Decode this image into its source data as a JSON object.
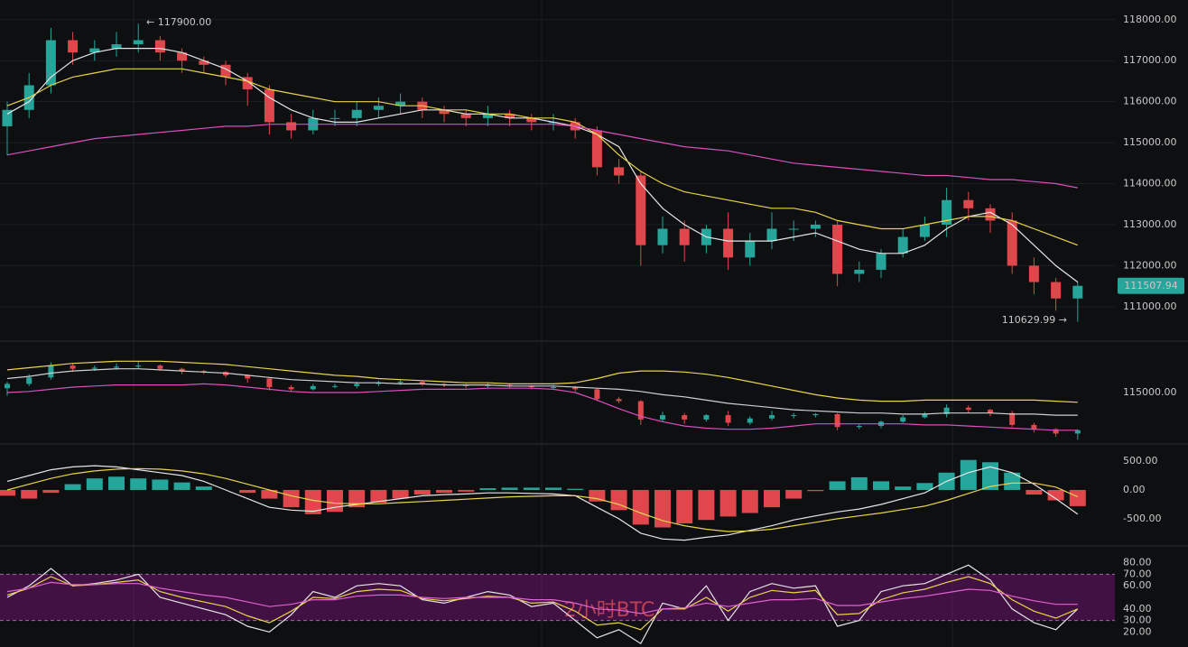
{
  "chart_data": {
    "type": "candlestick",
    "up_color": "#26a69a",
    "down_color": "#e0474c",
    "open": [
      115400,
      115800,
      116400,
      117500,
      117200,
      117300,
      117400,
      117500,
      117200,
      117000,
      116900,
      116600,
      116300,
      115500,
      115300,
      115600,
      115600,
      115800,
      115900,
      116000,
      115800,
      115700,
      115600,
      115700,
      115600,
      115500,
      115500,
      115300,
      114400,
      114200,
      112500,
      112900,
      112500,
      112900,
      112200,
      112600,
      112900,
      112900,
      113000,
      111800,
      111900,
      112300,
      112700,
      113000,
      113600,
      113400,
      113100,
      112000,
      111600,
      111200
    ],
    "high": [
      116000,
      116700,
      117800,
      117700,
      117500,
      117700,
      117900,
      117600,
      117300,
      117100,
      117000,
      116700,
      116400,
      115700,
      115800,
      115800,
      116000,
      116100,
      116200,
      116100,
      115900,
      115800,
      115900,
      115800,
      115700,
      115700,
      115600,
      115400,
      114600,
      114300,
      113200,
      113100,
      113000,
      113300,
      112800,
      113300,
      113100,
      113100,
      113100,
      112100,
      112400,
      112900,
      113200,
      113900,
      113800,
      113500,
      113300,
      112200,
      111700,
      111600
    ],
    "low": [
      114700,
      115600,
      116200,
      116900,
      117000,
      117100,
      117200,
      117000,
      116700,
      116700,
      116400,
      115900,
      115200,
      115100,
      115200,
      115400,
      115400,
      115600,
      115700,
      115600,
      115500,
      115400,
      115400,
      115400,
      115300,
      115300,
      115100,
      114200,
      114000,
      112000,
      112300,
      112100,
      112300,
      111900,
      112000,
      112400,
      112600,
      112700,
      111500,
      111600,
      111700,
      112200,
      112600,
      112700,
      113100,
      112800,
      111800,
      111300,
      110900,
      110630
    ],
    "close": [
      115800,
      116400,
      117500,
      117200,
      117300,
      117400,
      117500,
      117200,
      117000,
      116900,
      116600,
      116300,
      115500,
      115300,
      115600,
      115600,
      115800,
      115900,
      116000,
      115800,
      115700,
      115600,
      115700,
      115600,
      115500,
      115500,
      115300,
      114400,
      114200,
      112500,
      112900,
      112500,
      112900,
      112200,
      112600,
      112900,
      112900,
      113000,
      111800,
      111900,
      112300,
      112700,
      113000,
      113600,
      113400,
      113100,
      112000,
      111600,
      111200,
      111507.94
    ],
    "ma": [
      {
        "color": "#e6e6e6",
        "values": [
          115700,
          116000,
          116600,
          117000,
          117200,
          117300,
          117300,
          117300,
          117200,
          117000,
          116800,
          116500,
          116100,
          115800,
          115600,
          115500,
          115500,
          115600,
          115700,
          115800,
          115800,
          115700,
          115700,
          115600,
          115600,
          115500,
          115400,
          115200,
          114900,
          114000,
          113400,
          113000,
          112700,
          112600,
          112600,
          112600,
          112700,
          112800,
          112600,
          112400,
          112300,
          112300,
          112500,
          112900,
          113200,
          113300,
          113000,
          112500,
          112000,
          111600
        ]
      },
      {
        "color": "#e8d44d",
        "values": [
          115900,
          116100,
          116400,
          116600,
          116700,
          116800,
          116800,
          116800,
          116800,
          116700,
          116600,
          116500,
          116300,
          116200,
          116100,
          116000,
          116000,
          116000,
          115900,
          115900,
          115800,
          115800,
          115700,
          115700,
          115600,
          115600,
          115500,
          115200,
          114700,
          114300,
          114000,
          113800,
          113700,
          113600,
          113500,
          113400,
          113400,
          113300,
          113100,
          113000,
          112900,
          112900,
          113000,
          113100,
          113200,
          113200,
          113100,
          112900,
          112700,
          112500
        ]
      },
      {
        "color": "#d94fc0",
        "values": [
          114700,
          114800,
          114900,
          115000,
          115100,
          115150,
          115200,
          115250,
          115300,
          115350,
          115400,
          115400,
          115450,
          115450,
          115450,
          115450,
          115450,
          115450,
          115450,
          115450,
          115450,
          115450,
          115450,
          115450,
          115450,
          115450,
          115400,
          115300,
          115200,
          115100,
          115000,
          114900,
          114850,
          114800,
          114700,
          114600,
          114500,
          114450,
          114400,
          114350,
          114300,
          114250,
          114200,
          114200,
          114150,
          114100,
          114100,
          114050,
          114000,
          113900
        ]
      }
    ],
    "ylim": [
      110160,
      118480
    ],
    "yticks": [
      {
        "value": 118000,
        "label": "118000.00"
      },
      {
        "value": 117000,
        "label": "117000.00"
      },
      {
        "value": 116000,
        "label": "116000.00"
      },
      {
        "value": 115000,
        "label": "115000.00"
      },
      {
        "value": 114000,
        "label": "114000.00"
      },
      {
        "value": 113000,
        "label": "113000.00"
      },
      {
        "value": 112000,
        "label": "112000.00"
      },
      {
        "value": 111000,
        "label": "111000.00"
      }
    ],
    "last_price": 111507.94,
    "annotations": [
      {
        "text": "← 117900.00"
      },
      {
        "text": "110629.99 →"
      }
    ],
    "watermark": "2小时BTC",
    "bands": {
      "ylim": [
        110400,
        119600
      ],
      "yticks": [
        {
          "value": 115000,
          "label": "115000.00"
        }
      ],
      "series": [
        {
          "color": "#e8d44d",
          "values": [
            117100,
            117300,
            117500,
            117700,
            117800,
            117900,
            117900,
            117900,
            117800,
            117700,
            117600,
            117400,
            117200,
            117000,
            116800,
            116600,
            116500,
            116300,
            116200,
            116100,
            116000,
            115900,
            115900,
            115800,
            115800,
            115800,
            115900,
            116300,
            116800,
            117000,
            117000,
            116900,
            116700,
            116400,
            116000,
            115600,
            115200,
            114800,
            114500,
            114300,
            114200,
            114200,
            114300,
            114300,
            114300,
            114300,
            114300,
            114300,
            114200,
            114100
          ]
        },
        {
          "color": "#cfcfcf",
          "values": [
            116300,
            116500,
            116800,
            117000,
            117100,
            117200,
            117200,
            117100,
            117000,
            116900,
            116800,
            116600,
            116400,
            116200,
            116100,
            116000,
            115900,
            115900,
            115800,
            115800,
            115700,
            115700,
            115700,
            115600,
            115600,
            115600,
            115500,
            115400,
            115300,
            115100,
            114800,
            114600,
            114300,
            114000,
            113800,
            113600,
            113400,
            113300,
            113200,
            113100,
            113100,
            113000,
            113000,
            113100,
            113100,
            113100,
            113000,
            113000,
            112900,
            112900
          ]
        },
        {
          "color": "#d94fc0",
          "values": [
            115000,
            115100,
            115300,
            115500,
            115600,
            115700,
            115700,
            115700,
            115700,
            115800,
            115700,
            115500,
            115300,
            115100,
            115000,
            115000,
            115000,
            115100,
            115200,
            115300,
            115300,
            115300,
            115400,
            115400,
            115400,
            115300,
            115000,
            114300,
            113500,
            112800,
            112300,
            111900,
            111700,
            111600,
            111600,
            111700,
            111900,
            112100,
            112100,
            112100,
            112100,
            112100,
            112000,
            112000,
            111900,
            111800,
            111700,
            111600,
            111500,
            111500
          ]
        }
      ]
    },
    "macd": {
      "ylim": [
        -970,
        750
      ],
      "yticks": [
        {
          "value": 500,
          "label": "500.00"
        },
        {
          "value": 0,
          "label": "0.00"
        },
        {
          "value": -500,
          "label": "-500.00"
        }
      ],
      "histogram": [
        -100,
        -150,
        -50,
        100,
        200,
        230,
        200,
        180,
        130,
        60,
        0,
        -50,
        -150,
        -300,
        -420,
        -380,
        -300,
        -220,
        -150,
        -80,
        -50,
        -30,
        30,
        40,
        40,
        40,
        20,
        -200,
        -350,
        -600,
        -650,
        -580,
        -520,
        -460,
        -400,
        -300,
        -150,
        -20,
        150,
        220,
        150,
        60,
        120,
        300,
        520,
        480,
        300,
        -80,
        -180,
        -280
      ],
      "series": [
        {
          "color": "#e6e6e6",
          "values": [
            150,
            250,
            350,
            400,
            420,
            400,
            350,
            300,
            250,
            150,
            0,
            -150,
            -300,
            -350,
            -370,
            -300,
            -250,
            -200,
            -150,
            -100,
            -80,
            -70,
            -50,
            -50,
            -60,
            -70,
            -100,
            -300,
            -500,
            -750,
            -850,
            -870,
            -820,
            -780,
            -700,
            -620,
            -520,
            -450,
            -380,
            -330,
            -250,
            -150,
            -50,
            150,
            300,
            400,
            300,
            100,
            -150,
            -420
          ]
        },
        {
          "color": "#e8d44d",
          "values": [
            0,
            100,
            200,
            280,
            330,
            360,
            370,
            360,
            330,
            280,
            200,
            100,
            0,
            -100,
            -180,
            -230,
            -240,
            -240,
            -220,
            -200,
            -180,
            -160,
            -140,
            -120,
            -110,
            -100,
            -100,
            -150,
            -250,
            -400,
            -530,
            -620,
            -680,
            -720,
            -710,
            -680,
            -620,
            -560,
            -500,
            -450,
            -400,
            -340,
            -280,
            -180,
            -60,
            60,
            120,
            120,
            50,
            -120
          ]
        }
      ]
    },
    "rsi": {
      "ylim": [
        7,
        93
      ],
      "yticks": [
        {
          "value": 80,
          "label": "80.00"
        },
        {
          "value": 70,
          "label": "70.00"
        },
        {
          "value": 60,
          "label": "60.00"
        },
        {
          "value": 40,
          "label": "40.00"
        },
        {
          "value": 30,
          "label": "30.00"
        },
        {
          "value": 20,
          "label": "20.00"
        }
      ],
      "band": [
        30,
        70
      ],
      "series": [
        {
          "color": "#e6e6e6",
          "values": [
            50,
            60,
            75,
            60,
            62,
            65,
            70,
            50,
            45,
            40,
            35,
            25,
            20,
            35,
            55,
            50,
            60,
            62,
            60,
            48,
            45,
            50,
            55,
            52,
            42,
            45,
            30,
            15,
            22,
            10,
            45,
            40,
            60,
            30,
            55,
            62,
            58,
            60,
            25,
            30,
            55,
            60,
            62,
            70,
            78,
            65,
            40,
            28,
            22,
            40
          ]
        },
        {
          "color": "#e8d44d",
          "values": [
            52,
            58,
            68,
            60,
            61,
            63,
            65,
            55,
            50,
            46,
            42,
            34,
            28,
            38,
            50,
            49,
            55,
            57,
            56,
            49,
            47,
            49,
            51,
            50,
            45,
            46,
            38,
            26,
            28,
            22,
            40,
            40,
            50,
            38,
            50,
            56,
            54,
            56,
            35,
            36,
            48,
            54,
            57,
            63,
            68,
            62,
            48,
            38,
            32,
            40
          ]
        },
        {
          "color": "#e060d0",
          "values": [
            55,
            58,
            63,
            61,
            61,
            62,
            62,
            58,
            55,
            52,
            50,
            46,
            42,
            44,
            48,
            48,
            51,
            52,
            52,
            50,
            49,
            50,
            50,
            50,
            48,
            48,
            45,
            40,
            39,
            36,
            40,
            41,
            45,
            42,
            45,
            48,
            48,
            49,
            43,
            43,
            46,
            49,
            51,
            54,
            57,
            56,
            51,
            47,
            44,
            44
          ]
        }
      ]
    }
  }
}
